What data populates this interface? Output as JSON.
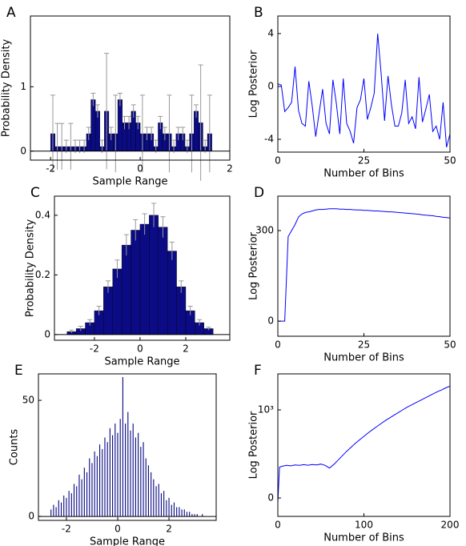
{
  "chart_data": [
    {
      "type": "histogram",
      "panel_label": "A",
      "xlabel": "Sample Range",
      "ylabel": "Probability Density",
      "bins": [
        -2.0,
        -1.9,
        -1.8,
        -1.7,
        -1.6,
        -1.5,
        -1.4,
        -1.3,
        -1.2,
        -1.1,
        -1.0,
        -0.9,
        -0.8,
        -0.7,
        -0.6,
        -0.5,
        -0.4,
        -0.3,
        -0.2,
        -0.1,
        0.0,
        0.1,
        0.2,
        0.3,
        0.4,
        0.5,
        0.6,
        0.7,
        0.8,
        0.9,
        1.0,
        1.1,
        1.2,
        1.3,
        1.4,
        1.5,
        1.6
      ],
      "values": [
        0.27,
        0.07,
        0.07,
        0.07,
        0.07,
        0.07,
        0.07,
        0.07,
        0.27,
        0.8,
        0.62,
        0.07,
        0.62,
        0.27,
        0.27,
        0.8,
        0.44,
        0.44,
        0.62,
        0.44,
        0.27,
        0.27,
        0.27,
        0.07,
        0.44,
        0.27,
        0.27,
        0.07,
        0.27,
        0.27,
        0.07,
        0.27,
        0.62,
        0.44,
        0.07,
        0.27
      ],
      "errors": [
        0.6,
        0.36,
        0.36,
        0.1,
        0.36,
        0.1,
        0.1,
        0.1,
        0.1,
        0.1,
        0.1,
        0.1,
        0.9,
        0.1,
        0.6,
        0.1,
        0.1,
        0.1,
        0.1,
        0.1,
        0.6,
        0.1,
        0.1,
        0.1,
        0.1,
        0.1,
        0.6,
        0.1,
        0.1,
        0.1,
        0.1,
        0.6,
        0.1,
        0.9,
        0.1,
        0.6
      ],
      "color": "#0b0b85",
      "error_color": "#999999",
      "xlim": [
        -2.45,
        2.0
      ],
      "ylim": [
        -0.14,
        2.1
      ],
      "xticks": [
        -2,
        0,
        2
      ],
      "yticks": [
        0,
        1
      ]
    },
    {
      "type": "line",
      "panel_label": "B",
      "xlabel": "Number of Bins",
      "ylabel": "Log Posterior",
      "x": [
        0,
        1,
        2,
        3,
        4,
        5,
        6,
        7,
        8,
        9,
        10,
        11,
        12,
        13,
        14,
        15,
        16,
        17,
        18,
        19,
        20,
        21,
        22,
        23,
        24,
        25,
        26,
        27,
        28,
        29,
        30,
        31,
        32,
        33,
        34,
        35,
        36,
        37,
        38,
        39,
        40,
        41,
        42,
        43,
        44,
        45,
        46,
        47,
        48,
        49,
        50
      ],
      "values": [
        0.2,
        0.1,
        -1.9,
        -1.6,
        -1.2,
        1.5,
        -1.8,
        -2.8,
        -3.0,
        0.4,
        -1.5,
        -3.8,
        -2.0,
        -0.2,
        -2.8,
        -3.6,
        0.5,
        -1.3,
        -3.6,
        0.6,
        -2.8,
        -3.4,
        -4.3,
        -1.6,
        -1.0,
        0.6,
        -2.5,
        -1.6,
        -0.5,
        4.0,
        1.0,
        -2.6,
        0.8,
        -1.4,
        -3.0,
        -3.0,
        -2.0,
        0.5,
        -2.8,
        -2.3,
        -3.2,
        0.7,
        -2.7,
        -1.7,
        -0.6,
        -3.4,
        -3.0,
        -4.0,
        -1.2,
        -4.6,
        -3.6
      ],
      "color": "#0000ff",
      "xlim": [
        0,
        50
      ],
      "ylim": [
        -4.97,
        5.33
      ],
      "xticks": [
        0,
        25,
        50
      ],
      "yticks": [
        -4,
        0,
        4
      ]
    },
    {
      "type": "histogram",
      "panel_label": "C",
      "xlabel": "Sample Range",
      "ylabel": "Probability Density",
      "bins": [
        -3.2,
        -2.8,
        -2.4,
        -2.0,
        -1.6,
        -1.2,
        -0.8,
        -0.4,
        0.0,
        0.4,
        0.8,
        1.2,
        1.6,
        2.0,
        2.4,
        2.8,
        3.2
      ],
      "values": [
        0.01,
        0.02,
        0.04,
        0.08,
        0.16,
        0.22,
        0.3,
        0.35,
        0.37,
        0.4,
        0.36,
        0.28,
        0.16,
        0.08,
        0.04,
        0.02
      ],
      "errors": [
        0.005,
        0.008,
        0.01,
        0.015,
        0.02,
        0.03,
        0.035,
        0.035,
        0.035,
        0.04,
        0.035,
        0.03,
        0.02,
        0.015,
        0.01,
        0.005
      ],
      "color": "#0b0b85",
      "error_color": "#999999",
      "xlim": [
        -3.75,
        3.93
      ],
      "ylim": [
        -0.019,
        0.464
      ],
      "xticks": [
        -2,
        0,
        2
      ],
      "yticks": [
        0,
        0.2,
        0.4
      ]
    },
    {
      "type": "line",
      "panel_label": "D",
      "xlabel": "Number of Bins",
      "ylabel": "Log Posterior",
      "x": [
        0,
        1,
        2,
        3,
        4,
        5,
        6,
        7,
        8,
        9,
        10,
        11,
        12,
        13,
        14,
        15,
        16,
        17,
        18,
        19,
        20,
        21,
        22,
        23,
        24,
        25,
        26,
        27,
        28,
        29,
        30,
        31,
        32,
        33,
        34,
        35,
        36,
        37,
        38,
        39,
        40,
        41,
        42,
        43,
        44,
        45,
        46,
        47,
        48,
        49,
        50
      ],
      "values": [
        0,
        0,
        0,
        280,
        300,
        320,
        345,
        355,
        360,
        362,
        365,
        368,
        370,
        370,
        371,
        372,
        372,
        372,
        371,
        371,
        370,
        370,
        369,
        368,
        368,
        367,
        367,
        366,
        365,
        365,
        364,
        363,
        362,
        362,
        361,
        360,
        359,
        358,
        357,
        356,
        355,
        354,
        352,
        351,
        350,
        349,
        347,
        346,
        344,
        343,
        342
      ],
      "color": "#0000ff",
      "xlim": [
        0,
        50
      ],
      "ylim": [
        -50,
        414
      ],
      "xticks": [
        0,
        25,
        50
      ],
      "yticks": [
        0,
        300
      ]
    },
    {
      "type": "histogram",
      "panel_label": "E",
      "xlabel": "Sample Range",
      "ylabel": "Counts",
      "bins": [
        -2.65,
        -2.55,
        -2.45,
        -2.35,
        -2.25,
        -2.15,
        -2.05,
        -1.95,
        -1.85,
        -1.75,
        -1.65,
        -1.55,
        -1.45,
        -1.35,
        -1.25,
        -1.15,
        -1.05,
        -0.95,
        -0.85,
        -0.75,
        -0.65,
        -0.55,
        -0.45,
        -0.35,
        -0.25,
        -0.15,
        -0.05,
        0.05,
        0.15,
        0.25,
        0.35,
        0.45,
        0.55,
        0.65,
        0.75,
        0.85,
        0.95,
        1.05,
        1.15,
        1.25,
        1.35,
        1.45,
        1.55,
        1.65,
        1.75,
        1.85,
        1.95,
        2.05,
        2.15,
        2.25,
        2.35,
        2.45,
        2.55,
        2.65,
        2.75,
        2.85,
        2.95,
        3.05,
        3.15,
        3.25,
        3.35
      ],
      "values": [
        3,
        5,
        4,
        7,
        6,
        9,
        8,
        11,
        10,
        14,
        13,
        18,
        16,
        21,
        19,
        25,
        23,
        28,
        26,
        31,
        29,
        34,
        32,
        38,
        35,
        40,
        36,
        42,
        60,
        40,
        45,
        37,
        40,
        34,
        36,
        30,
        32,
        25,
        22,
        19,
        16,
        13,
        14,
        10,
        11,
        7,
        8,
        5,
        6,
        4,
        4,
        3,
        3,
        2,
        2,
        1,
        1,
        1,
        0,
        1
      ],
      "color": "#0b0b85",
      "xlim": [
        -3.09,
        3.84
      ],
      "ylim": [
        -1.7,
        61.4
      ],
      "xticks": [
        -2,
        0,
        2
      ],
      "yticks": [
        0,
        50
      ]
    },
    {
      "type": "line",
      "panel_label": "F",
      "xlabel": "Number of Bins",
      "ylabel": "Log Posterior",
      "x": [
        0,
        2,
        5,
        10,
        15,
        20,
        25,
        30,
        35,
        40,
        45,
        50,
        55,
        60,
        65,
        70,
        75,
        80,
        85,
        90,
        95,
        100,
        105,
        110,
        115,
        120,
        125,
        130,
        135,
        140,
        145,
        150,
        155,
        160,
        165,
        170,
        175,
        180,
        185,
        190,
        195,
        200
      ],
      "values": [
        -50,
        350,
        360,
        370,
        365,
        375,
        370,
        378,
        372,
        380,
        375,
        385,
        370,
        340,
        380,
        430,
        480,
        530,
        575,
        620,
        660,
        700,
        740,
        775,
        810,
        845,
        880,
        910,
        940,
        970,
        1000,
        1030,
        1055,
        1080,
        1105,
        1130,
        1155,
        1180,
        1205,
        1225,
        1250,
        1270
      ],
      "color": "#0000ff",
      "xlim": [
        0,
        200
      ],
      "ylim": [
        -209,
        1409
      ],
      "xticks": [
        0,
        100,
        200
      ],
      "yticks": [
        0,
        {
          "value": 1000,
          "label": "10³"
        }
      ]
    }
  ]
}
